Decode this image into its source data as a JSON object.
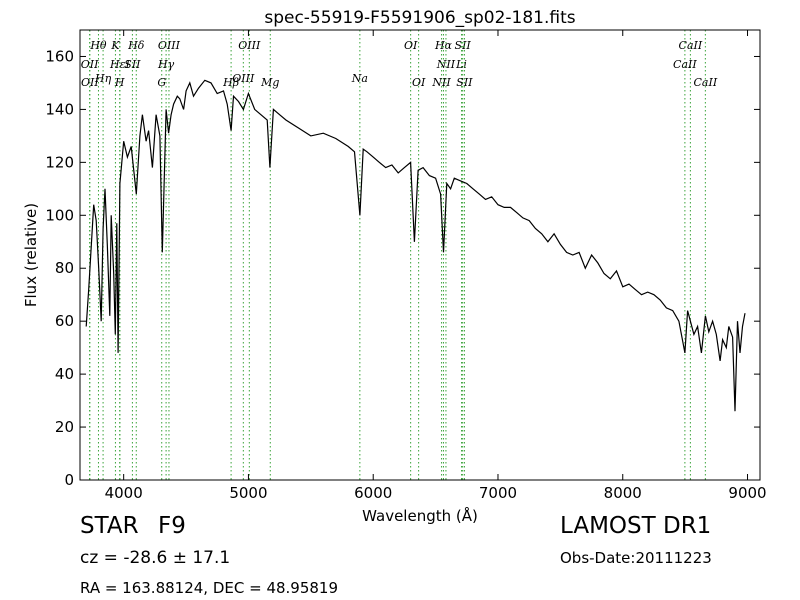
{
  "chart_data": {
    "type": "line",
    "title": "spec-55919-F5591906_sp02-181.fits",
    "xlabel": "Wavelength (Å)",
    "ylabel": "Flux (relative)",
    "xlim": [
      3650,
      9100
    ],
    "ylim": [
      0,
      170
    ],
    "xticks": [
      4000,
      5000,
      6000,
      7000,
      8000,
      9000
    ],
    "yticks": [
      0,
      20,
      40,
      60,
      80,
      100,
      120,
      140,
      160
    ],
    "grid": false,
    "series": [
      {
        "color": "#000000",
        "x": [
          3700,
          3720,
          3740,
          3760,
          3780,
          3800,
          3820,
          3835,
          3850,
          3870,
          3889,
          3900,
          3920,
          3933,
          3945,
          3955,
          3970,
          3985,
          4000,
          4030,
          4060,
          4101,
          4130,
          4150,
          4180,
          4200,
          4230,
          4260,
          4290,
          4310,
          4340,
          4360,
          4380,
          4400,
          4430,
          4450,
          4480,
          4500,
          4530,
          4560,
          4600,
          4650,
          4700,
          4750,
          4800,
          4830,
          4861,
          4880,
          4920,
          4960,
          5000,
          5050,
          5100,
          5150,
          5172,
          5200,
          5250,
          5300,
          5400,
          5500,
          5600,
          5700,
          5800,
          5850,
          5893,
          5920,
          5950,
          6000,
          6050,
          6100,
          6150,
          6200,
          6250,
          6300,
          6330,
          6360,
          6400,
          6450,
          6500,
          6540,
          6563,
          6590,
          6620,
          6650,
          6700,
          6750,
          6800,
          6850,
          6900,
          6950,
          7000,
          7050,
          7100,
          7150,
          7200,
          7250,
          7300,
          7350,
          7400,
          7450,
          7500,
          7550,
          7600,
          7650,
          7700,
          7750,
          7800,
          7850,
          7900,
          7950,
          8000,
          8050,
          8100,
          8150,
          8200,
          8250,
          8300,
          8350,
          8400,
          8450,
          8498,
          8520,
          8542,
          8570,
          8600,
          8630,
          8662,
          8690,
          8720,
          8750,
          8780,
          8800,
          8830,
          8850,
          8880,
          8900,
          8920,
          8940,
          8960,
          8980
        ],
        "y": [
          58,
          72,
          88,
          104,
          98,
          80,
          60,
          95,
          110,
          88,
          62,
          100,
          78,
          55,
          97,
          48,
          112,
          120,
          128,
          122,
          126,
          108,
          130,
          138,
          128,
          132,
          118,
          138,
          130,
          86,
          140,
          131,
          138,
          142,
          145,
          144,
          140,
          147,
          150,
          145,
          148,
          151,
          150,
          146,
          147,
          142,
          132,
          145,
          143,
          140,
          146,
          140,
          138,
          136,
          118,
          140,
          138,
          136,
          133,
          130,
          131,
          129,
          126,
          124,
          100,
          125,
          124,
          122,
          120,
          118,
          119,
          116,
          118,
          120,
          90,
          117,
          118,
          115,
          114,
          108,
          86,
          112,
          110,
          114,
          113,
          112,
          110,
          108,
          106,
          107,
          104,
          103,
          103,
          101,
          99,
          98,
          95,
          93,
          90,
          93,
          89,
          86,
          85,
          86,
          80,
          85,
          82,
          78,
          76,
          79,
          73,
          74,
          72,
          70,
          71,
          70,
          68,
          65,
          64,
          60,
          48,
          64,
          60,
          55,
          58,
          48,
          62,
          56,
          60,
          55,
          45,
          53,
          50,
          58,
          54,
          26,
          60,
          48,
          58,
          63
        ]
      }
    ],
    "lines": [
      {
        "name": "Hθ",
        "x": 3798,
        "row": 0
      },
      {
        "name": "K",
        "x": 3934,
        "row": 0
      },
      {
        "name": "Hδ",
        "x": 4101,
        "row": 0
      },
      {
        "name": "OIII",
        "x": 4363,
        "row": 0
      },
      {
        "name": "OIII",
        "x": 5007,
        "row": 0
      },
      {
        "name": "OI",
        "x": 6300,
        "row": 0
      },
      {
        "name": "Hα",
        "x": 6563,
        "row": 0
      },
      {
        "name": "SII",
        "x": 6717,
        "row": 0
      },
      {
        "name": "CaII",
        "x": 8542,
        "row": 0
      },
      {
        "name": "OII",
        "x": 3727,
        "row": 1
      },
      {
        "name": "HεI",
        "x": 3970,
        "row": 1
      },
      {
        "name": "SII",
        "x": 4070,
        "row": 1
      },
      {
        "name": "Hγ",
        "x": 4340,
        "row": 1
      },
      {
        "name": "NII",
        "x": 6583,
        "row": 1
      },
      {
        "name": "Li",
        "x": 6708,
        "row": 1
      },
      {
        "name": "CaII",
        "x": 8498,
        "row": 1
      },
      {
        "name": "Hη",
        "x": 3835,
        "row": 2
      },
      {
        "name": "OIII",
        "x": 4959,
        "row": 2
      },
      {
        "name": "Na",
        "x": 5893,
        "row": 2
      },
      {
        "name": "OII",
        "x": 3729,
        "row": 3
      },
      {
        "name": "H",
        "x": 3968,
        "row": 3
      },
      {
        "name": "G",
        "x": 4305,
        "row": 3
      },
      {
        "name": "Hβ",
        "x": 4861,
        "row": 3
      },
      {
        "name": "Mg",
        "x": 5175,
        "row": 3
      },
      {
        "name": "OI",
        "x": 6364,
        "row": 3
      },
      {
        "name": "NII",
        "x": 6548,
        "row": 3
      },
      {
        "name": "SII",
        "x": 6731,
        "row": 3
      },
      {
        "name": "CaII",
        "x": 8662,
        "row": 3
      }
    ]
  },
  "info": {
    "object_class": "STAR",
    "subclass": "F9",
    "cz": "cz = -28.6 ± 17.1",
    "radec": "RA = 163.88124, DEC = 48.95819",
    "survey": "LAMOST DR1",
    "obs_date": "Obs-Date:20111223"
  }
}
